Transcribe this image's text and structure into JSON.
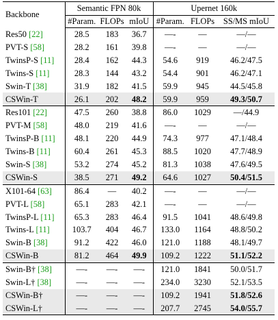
{
  "header": {
    "backbone": "Backbone",
    "fpn_group": "Semantic FPN 80k",
    "upernet_group": "Upernet 160k",
    "col_param": "#Param.",
    "col_flops": "FLOPs",
    "col_miou": "mIoU",
    "col_param2": "#Param.",
    "col_flops2": "FLOPs",
    "col_ssms": "SS/MS mIoU"
  },
  "groups": [
    {
      "rows": [
        {
          "name": "Res50 ",
          "cite": "[22]",
          "p1": "28.5",
          "f1": "183",
          "m1": "36.7",
          "p2": "—-",
          "f2": "—",
          "m2": "—/—"
        },
        {
          "name": "PVT-S ",
          "cite": "[58]",
          "p1": "28.2",
          "f1": "161",
          "m1": "39.8",
          "p2": "—-",
          "f2": "—",
          "m2": "—/—"
        },
        {
          "name": "TwinsP-S ",
          "cite": "[11]",
          "p1": "28.4",
          "f1": "162",
          "m1": "44.3",
          "p2": "54.6",
          "f2": "919",
          "m2": "46.2/47.5"
        },
        {
          "name": "Twins-S ",
          "cite": "[11]",
          "p1": "28.3",
          "f1": "144",
          "m1": "43.2",
          "p2": "54.4",
          "f2": "901",
          "m2": "46.2/47.1"
        },
        {
          "name": "Swin-T ",
          "cite": "[38]",
          "p1": "31.9",
          "f1": "182",
          "m1": "41.5",
          "p2": "59.9",
          "f2": "945",
          "m2": "44.5/45.8"
        },
        {
          "name": "CSWin-T",
          "cite": "",
          "p1": "26.1",
          "f1": "202",
          "m1": "48.2",
          "p2": "59.9",
          "f2": "959",
          "m2": "49.3/50.7",
          "hl": true
        }
      ]
    },
    {
      "rows": [
        {
          "name": "Res101 ",
          "cite": "[22]",
          "p1": "47.5",
          "f1": "260",
          "m1": "38.8",
          "p2": "86.0",
          "f2": "1029",
          "m2": "—/44.9"
        },
        {
          "name": "PVT-M ",
          "cite": "[58]",
          "p1": "48.0",
          "f1": "219",
          "m1": "41.6",
          "p2": "—-",
          "f2": "—",
          "m2": "—/—"
        },
        {
          "name": "TwinsP-B ",
          "cite": "[11]",
          "p1": "48.1",
          "f1": "220",
          "m1": "44.9",
          "p2": "74.3",
          "f2": "977",
          "m2": "47.1/48.4"
        },
        {
          "name": "Twins-B ",
          "cite": "[11]",
          "p1": "60.4",
          "f1": "261",
          "m1": "45.3",
          "p2": "88.5",
          "f2": "1020",
          "m2": "47.7/48.9"
        },
        {
          "name": "Swin-S ",
          "cite": "[38]",
          "p1": "53.2",
          "f1": "274",
          "m1": "45.2",
          "p2": "81.3",
          "f2": "1038",
          "m2": "47.6/49.5"
        },
        {
          "name": "CSWin-S",
          "cite": "",
          "p1": "38.5",
          "f1": "271",
          "m1": "49.2",
          "p2": "64.6",
          "f2": "1027",
          "m2": "50.4/51.5",
          "hl": true
        }
      ]
    },
    {
      "rows": [
        {
          "name": "X101-64 ",
          "cite": "[63]",
          "p1": "86.4",
          "f1": "—",
          "m1": "40.2",
          "p2": "—-",
          "f2": "—",
          "m2": "—/—"
        },
        {
          "name": "PVT-L ",
          "cite": "[58]",
          "p1": "65.1",
          "f1": "283",
          "m1": "42.1",
          "p2": "—-",
          "f2": "—",
          "m2": "—/—"
        },
        {
          "name": "TwinsP-L ",
          "cite": "[11]",
          "p1": "65.3",
          "f1": "283",
          "m1": "46.4",
          "p2": "91.5",
          "f2": "1041",
          "m2": "48.6/49.8"
        },
        {
          "name": "Twins-L ",
          "cite": "[11]",
          "p1": "103.7",
          "f1": "404",
          "m1": "46.7",
          "p2": "133.0",
          "f2": "1164",
          "m2": "48.8/50.2"
        },
        {
          "name": "Swin-B ",
          "cite": "[38]",
          "p1": "91.2",
          "f1": "422",
          "m1": "46.0",
          "p2": "121.0",
          "f2": "1188",
          "m2": "48.1/49.7"
        },
        {
          "name": "CSWin-B",
          "cite": "",
          "p1": "81.2",
          "f1": "464",
          "m1": "49.9",
          "p2": "109.2",
          "f2": "1222",
          "m2": "51.1/52.2",
          "hl": true
        }
      ]
    },
    {
      "rows": [
        {
          "name": "Swin-B† ",
          "cite": "[38]",
          "p1": "—-",
          "f1": "—-",
          "m1": "—-",
          "p2": "121.0",
          "f2": "1841",
          "m2": "50.0/51.7"
        },
        {
          "name": "Swin-L† ",
          "cite": "[38]",
          "p1": "—-",
          "f1": "—-",
          "m1": "—-",
          "p2": "234.0",
          "f2": "3230",
          "m2": "52.1/53.5"
        },
        {
          "name": "CSWin-B†",
          "cite": "",
          "p1": "—-",
          "f1": "—-",
          "m1": "—-",
          "p2": "109.2",
          "f2": "1941",
          "m2": "51.8/52.6",
          "hl": true
        },
        {
          "name": "CSWin-L†",
          "cite": "",
          "p1": "—-",
          "f1": "—-",
          "m1": "—-",
          "p2": "207.7",
          "f2": "2745",
          "m2": "54.0/55.7",
          "hl": true
        }
      ]
    }
  ]
}
